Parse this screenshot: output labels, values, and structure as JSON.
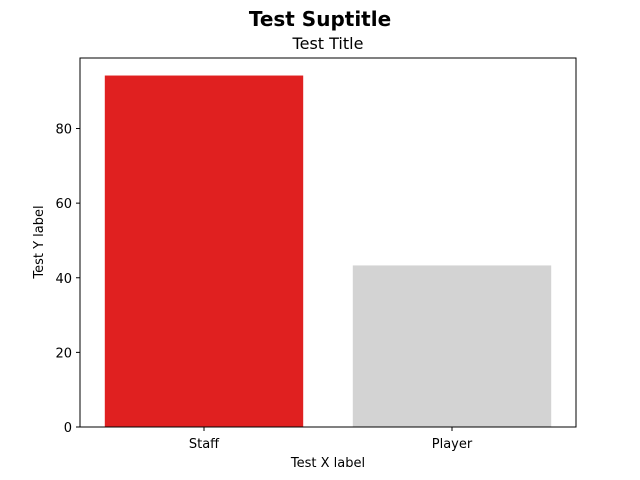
{
  "chart_data": {
    "type": "bar",
    "suptitle": "Test Suptitle",
    "title": "Test Title",
    "xlabel": "Test X label",
    "ylabel": "Test Y label",
    "categories": [
      "Staff",
      "Player"
    ],
    "values": [
      94.2,
      43.3
    ],
    "colors": [
      "#e02020",
      "#d3d3d3"
    ],
    "ylim": [
      0,
      98.9
    ],
    "yticks": [
      0,
      20,
      40,
      60,
      80
    ],
    "grid": false,
    "legend": "none"
  }
}
